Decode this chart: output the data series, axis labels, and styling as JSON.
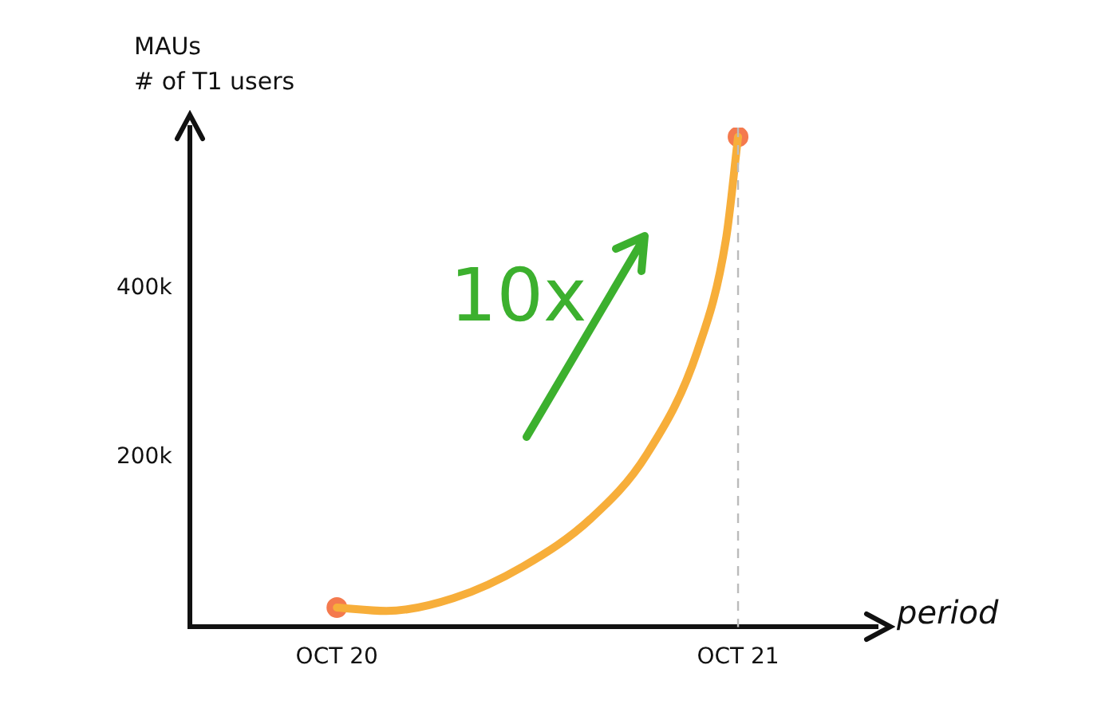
{
  "chart_data": {
    "type": "line",
    "ylabel": "MAUs\n# of T1 users",
    "xlabel": "period",
    "annotations": [
      "10x"
    ],
    "xlim": [
      "2020-05-20",
      "2022-02-05"
    ],
    "xticks": [
      {
        "value": "2020-10-01",
        "label": "OCT 20"
      },
      {
        "value": "2021-10-01",
        "label": "OCT 21"
      }
    ],
    "ylim": [
      0,
      590000
    ],
    "yticks": [
      {
        "value": 200000,
        "label": "200k"
      },
      {
        "value": 400000,
        "label": "400k"
      }
    ],
    "grid": false,
    "legend": false,
    "series": [
      {
        "color": "#f7ae3a",
        "marker": "none",
        "x": [
          "2020-10-01",
          "2020-11-15",
          "2021-01-15",
          "2021-03-20",
          "2021-05-20",
          "2021-07-10",
          "2021-08-25",
          "2021-09-20",
          "2021-10-01"
        ],
        "values": [
          23000,
          19000,
          34000,
          72000,
          128000,
          204000,
          326000,
          458000,
          579000
        ]
      },
      {
        "type": "scatter",
        "color": "#f47a4e",
        "marker": "circle",
        "x": [
          "2020-10-01",
          "2021-10-01"
        ],
        "values": [
          23000,
          579000
        ]
      }
    ],
    "ref_lines": [
      {
        "axis": "x",
        "value": "2021-10-01",
        "color": "#bbbbbb",
        "line_style": "dashed"
      }
    ]
  }
}
